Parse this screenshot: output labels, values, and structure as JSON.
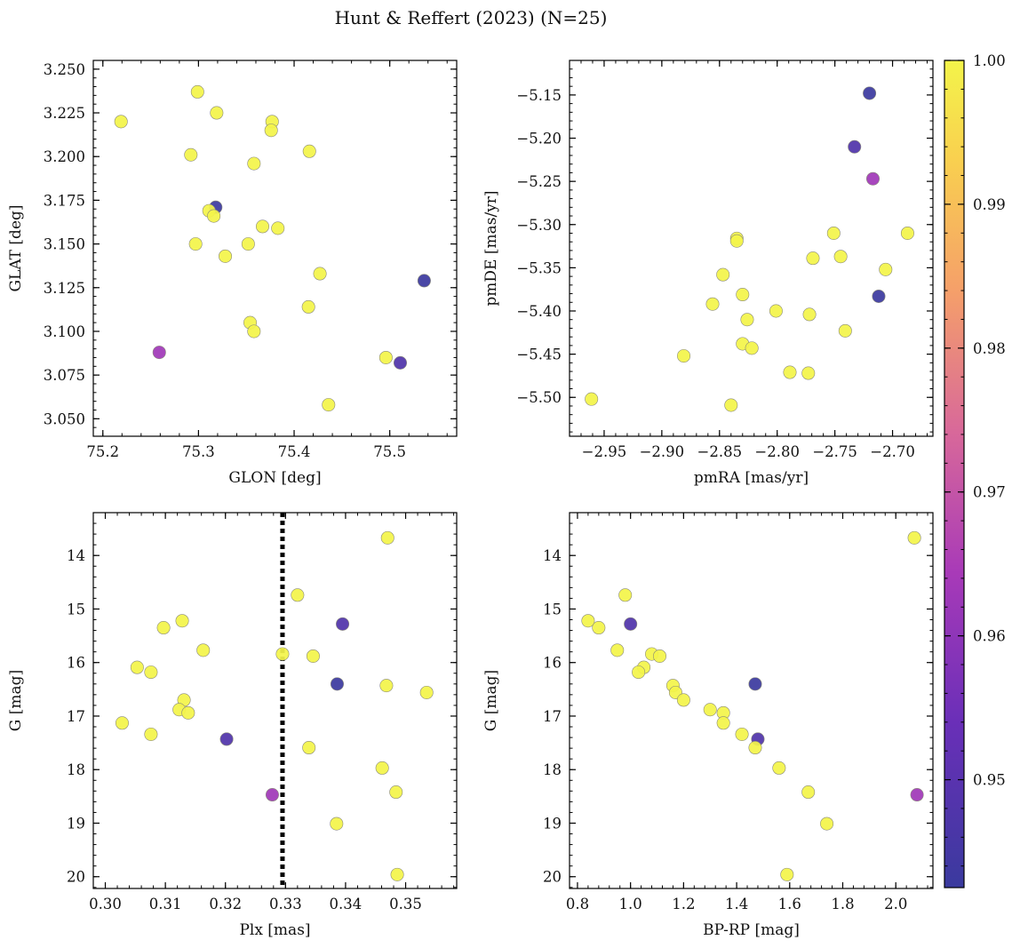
{
  "title": "Hunt & Reffert (2023) (N=25)",
  "colorbar": {
    "range": [
      0.9425,
      1.0
    ],
    "ticks": [
      0.95,
      0.96,
      0.97,
      0.98,
      0.99,
      1.0
    ],
    "tick_labels": [
      "0.95",
      "0.96",
      "0.97",
      "0.98",
      "0.99",
      "1.00"
    ],
    "colormap": "plasma"
  },
  "chart_data": [
    {
      "type": "scatter",
      "id": "glon-glat",
      "xlabel": "GLON [deg]",
      "ylabel": "GLAT [deg]",
      "xlim": [
        75.19,
        75.57
      ],
      "ylim": [
        3.04,
        3.255
      ],
      "y_inverted": false,
      "xticks": [
        75.2,
        75.3,
        75.4,
        75.5
      ],
      "xtick_labels": [
        "75.2",
        "75.3",
        "75.4",
        "75.5"
      ],
      "yticks": [
        3.05,
        3.075,
        3.1,
        3.125,
        3.15,
        3.175,
        3.2,
        3.225,
        3.25
      ],
      "ytick_labels": [
        "3.050",
        "3.075",
        "3.100",
        "3.125",
        "3.150",
        "3.175",
        "3.200",
        "3.225",
        "3.250"
      ],
      "points": [
        {
          "x": 75.219,
          "y": 3.22,
          "c": 1.0
        },
        {
          "x": 75.299,
          "y": 3.237,
          "c": 1.0
        },
        {
          "x": 75.319,
          "y": 3.225,
          "c": 1.0
        },
        {
          "x": 75.377,
          "y": 3.22,
          "c": 1.0
        },
        {
          "x": 75.376,
          "y": 3.215,
          "c": 1.0
        },
        {
          "x": 75.292,
          "y": 3.201,
          "c": 1.0
        },
        {
          "x": 75.416,
          "y": 3.203,
          "c": 1.0
        },
        {
          "x": 75.358,
          "y": 3.196,
          "c": 1.0
        },
        {
          "x": 75.318,
          "y": 3.171,
          "c": 0.943
        },
        {
          "x": 75.311,
          "y": 3.169,
          "c": 1.0
        },
        {
          "x": 75.316,
          "y": 3.166,
          "c": 1.0
        },
        {
          "x": 75.367,
          "y": 3.16,
          "c": 1.0
        },
        {
          "x": 75.383,
          "y": 3.159,
          "c": 1.0
        },
        {
          "x": 75.297,
          "y": 3.15,
          "c": 1.0
        },
        {
          "x": 75.352,
          "y": 3.15,
          "c": 1.0
        },
        {
          "x": 75.328,
          "y": 3.143,
          "c": 1.0
        },
        {
          "x": 75.427,
          "y": 3.133,
          "c": 1.0
        },
        {
          "x": 75.536,
          "y": 3.129,
          "c": 0.943
        },
        {
          "x": 75.415,
          "y": 3.114,
          "c": 1.0
        },
        {
          "x": 75.354,
          "y": 3.105,
          "c": 1.0
        },
        {
          "x": 75.358,
          "y": 3.1,
          "c": 1.0
        },
        {
          "x": 75.259,
          "y": 3.088,
          "c": 0.963
        },
        {
          "x": 75.496,
          "y": 3.085,
          "c": 1.0
        },
        {
          "x": 75.511,
          "y": 3.082,
          "c": 0.948
        },
        {
          "x": 75.436,
          "y": 3.058,
          "c": 1.0
        }
      ]
    },
    {
      "type": "scatter",
      "id": "pmra-pmde",
      "xlabel": "pmRA [mas/yr]",
      "ylabel": "pmDE [mas/yr]",
      "xlim": [
        -2.98,
        -2.665
      ],
      "ylim": [
        -5.545,
        -5.11
      ],
      "y_inverted": false,
      "xticks": [
        -2.95,
        -2.9,
        -2.85,
        -2.8,
        -2.75,
        -2.7
      ],
      "xtick_labels": [
        "−2.95",
        "−2.90",
        "−2.85",
        "−2.80",
        "−2.75",
        "−2.70"
      ],
      "yticks": [
        -5.5,
        -5.45,
        -5.4,
        -5.35,
        -5.3,
        -5.25,
        -5.2,
        -5.15
      ],
      "ytick_labels": [
        "−5.50",
        "−5.45",
        "−5.40",
        "−5.35",
        "−5.30",
        "−5.25",
        "−5.20",
        "−5.15"
      ],
      "points": [
        {
          "x": -2.72,
          "y": -5.148,
          "c": 0.943
        },
        {
          "x": -2.733,
          "y": -5.21,
          "c": 0.948
        },
        {
          "x": -2.717,
          "y": -5.247,
          "c": 0.963
        },
        {
          "x": -2.751,
          "y": -5.31,
          "c": 1.0
        },
        {
          "x": -2.687,
          "y": -5.31,
          "c": 1.0
        },
        {
          "x": -2.835,
          "y": -5.316,
          "c": 1.0
        },
        {
          "x": -2.835,
          "y": -5.319,
          "c": 1.0
        },
        {
          "x": -2.745,
          "y": -5.337,
          "c": 1.0
        },
        {
          "x": -2.769,
          "y": -5.339,
          "c": 1.0
        },
        {
          "x": -2.706,
          "y": -5.352,
          "c": 1.0
        },
        {
          "x": -2.847,
          "y": -5.358,
          "c": 1.0
        },
        {
          "x": -2.83,
          "y": -5.381,
          "c": 1.0
        },
        {
          "x": -2.712,
          "y": -5.383,
          "c": 0.943
        },
        {
          "x": -2.856,
          "y": -5.392,
          "c": 1.0
        },
        {
          "x": -2.801,
          "y": -5.4,
          "c": 1.0
        },
        {
          "x": -2.772,
          "y": -5.404,
          "c": 1.0
        },
        {
          "x": -2.826,
          "y": -5.41,
          "c": 1.0
        },
        {
          "x": -2.741,
          "y": -5.423,
          "c": 1.0
        },
        {
          "x": -2.83,
          "y": -5.438,
          "c": 1.0
        },
        {
          "x": -2.822,
          "y": -5.443,
          "c": 1.0
        },
        {
          "x": -2.881,
          "y": -5.452,
          "c": 1.0
        },
        {
          "x": -2.789,
          "y": -5.471,
          "c": 1.0
        },
        {
          "x": -2.773,
          "y": -5.472,
          "c": 1.0
        },
        {
          "x": -2.961,
          "y": -5.502,
          "c": 1.0
        },
        {
          "x": -2.84,
          "y": -5.509,
          "c": 1.0
        }
      ]
    },
    {
      "type": "scatter",
      "id": "plx-g",
      "xlabel": "Plx [mas]",
      "ylabel": "G [mag]",
      "xlim": [
        0.298,
        0.3585
      ],
      "ylim": [
        13.2,
        20.22
      ],
      "y_inverted": true,
      "xticks": [
        0.3,
        0.31,
        0.32,
        0.33,
        0.34,
        0.35
      ],
      "xtick_labels": [
        "0.30",
        "0.31",
        "0.32",
        "0.33",
        "0.34",
        "0.35"
      ],
      "yticks": [
        14,
        15,
        16,
        17,
        18,
        19,
        20
      ],
      "ytick_labels": [
        "14",
        "15",
        "16",
        "17",
        "18",
        "19",
        "20"
      ],
      "vline": {
        "x": 0.3295,
        "style": "dotted",
        "color": "#000000"
      },
      "points": [
        {
          "x": 0.347,
          "y": 13.67,
          "c": 1.0
        },
        {
          "x": 0.332,
          "y": 14.74,
          "c": 1.0
        },
        {
          "x": 0.3128,
          "y": 15.22,
          "c": 1.0
        },
        {
          "x": 0.3395,
          "y": 15.28,
          "c": 0.948
        },
        {
          "x": 0.3097,
          "y": 15.35,
          "c": 1.0
        },
        {
          "x": 0.3163,
          "y": 15.77,
          "c": 1.0
        },
        {
          "x": 0.3295,
          "y": 15.84,
          "c": 1.0
        },
        {
          "x": 0.3346,
          "y": 15.88,
          "c": 1.0
        },
        {
          "x": 0.3053,
          "y": 16.09,
          "c": 1.0
        },
        {
          "x": 0.3076,
          "y": 16.18,
          "c": 1.0
        },
        {
          "x": 0.3386,
          "y": 16.4,
          "c": 0.943
        },
        {
          "x": 0.3468,
          "y": 16.43,
          "c": 1.0
        },
        {
          "x": 0.3535,
          "y": 16.56,
          "c": 1.0
        },
        {
          "x": 0.3131,
          "y": 16.7,
          "c": 1.0
        },
        {
          "x": 0.3123,
          "y": 16.88,
          "c": 1.0
        },
        {
          "x": 0.3138,
          "y": 16.94,
          "c": 1.0
        },
        {
          "x": 0.3028,
          "y": 17.13,
          "c": 1.0
        },
        {
          "x": 0.3076,
          "y": 17.34,
          "c": 1.0
        },
        {
          "x": 0.3202,
          "y": 17.43,
          "c": 0.948
        },
        {
          "x": 0.3339,
          "y": 17.59,
          "c": 1.0
        },
        {
          "x": 0.3461,
          "y": 17.97,
          "c": 1.0
        },
        {
          "x": 0.3484,
          "y": 18.42,
          "c": 1.0
        },
        {
          "x": 0.3278,
          "y": 18.47,
          "c": 0.963
        },
        {
          "x": 0.3385,
          "y": 19.01,
          "c": 1.0
        },
        {
          "x": 0.3486,
          "y": 19.96,
          "c": 1.0
        }
      ]
    },
    {
      "type": "scatter",
      "id": "bprp-g",
      "xlabel": "BP-RP [mag]",
      "ylabel": "G [mag]",
      "xlim": [
        0.77,
        2.14
      ],
      "ylim": [
        13.2,
        20.22
      ],
      "y_inverted": true,
      "xticks": [
        0.8,
        1.0,
        1.2,
        1.4,
        1.6,
        1.8,
        2.0
      ],
      "xtick_labels": [
        "0.8",
        "1.0",
        "1.2",
        "1.4",
        "1.6",
        "1.8",
        "2.0"
      ],
      "yticks": [
        14,
        15,
        16,
        17,
        18,
        19,
        20
      ],
      "ytick_labels": [
        "14",
        "15",
        "16",
        "17",
        "18",
        "19",
        "20"
      ],
      "points": [
        {
          "x": 2.07,
          "y": 13.67,
          "c": 1.0
        },
        {
          "x": 0.98,
          "y": 14.74,
          "c": 1.0
        },
        {
          "x": 0.84,
          "y": 15.22,
          "c": 1.0
        },
        {
          "x": 1.0,
          "y": 15.28,
          "c": 0.948
        },
        {
          "x": 0.88,
          "y": 15.35,
          "c": 1.0
        },
        {
          "x": 0.95,
          "y": 15.77,
          "c": 1.0
        },
        {
          "x": 1.08,
          "y": 15.84,
          "c": 1.0
        },
        {
          "x": 1.11,
          "y": 15.88,
          "c": 1.0
        },
        {
          "x": 1.05,
          "y": 16.09,
          "c": 1.0
        },
        {
          "x": 1.03,
          "y": 16.18,
          "c": 1.0
        },
        {
          "x": 1.47,
          "y": 16.4,
          "c": 0.943
        },
        {
          "x": 1.16,
          "y": 16.43,
          "c": 1.0
        },
        {
          "x": 1.17,
          "y": 16.56,
          "c": 1.0
        },
        {
          "x": 1.2,
          "y": 16.7,
          "c": 1.0
        },
        {
          "x": 1.3,
          "y": 16.88,
          "c": 1.0
        },
        {
          "x": 1.35,
          "y": 16.94,
          "c": 1.0
        },
        {
          "x": 1.35,
          "y": 17.13,
          "c": 1.0
        },
        {
          "x": 1.42,
          "y": 17.34,
          "c": 1.0
        },
        {
          "x": 1.48,
          "y": 17.43,
          "c": 0.948
        },
        {
          "x": 1.47,
          "y": 17.59,
          "c": 1.0
        },
        {
          "x": 1.56,
          "y": 17.97,
          "c": 1.0
        },
        {
          "x": 1.67,
          "y": 18.42,
          "c": 1.0
        },
        {
          "x": 2.08,
          "y": 18.47,
          "c": 0.963
        },
        {
          "x": 1.74,
          "y": 19.01,
          "c": 1.0
        },
        {
          "x": 1.59,
          "y": 19.96,
          "c": 1.0
        }
      ]
    }
  ]
}
